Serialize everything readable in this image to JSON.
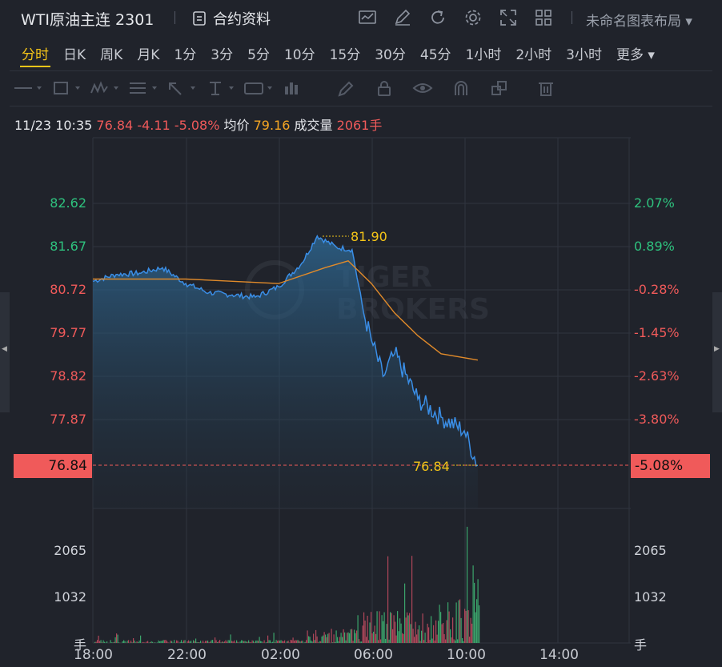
{
  "header": {
    "title": "WTI原油主连 2301",
    "info_label": "合约资料",
    "layout_label": "未命名图表布局"
  },
  "tabs": [
    {
      "label": "分时",
      "active": true
    },
    {
      "label": "日K"
    },
    {
      "label": "周K"
    },
    {
      "label": "月K"
    },
    {
      "label": "1分"
    },
    {
      "label": "3分"
    },
    {
      "label": "5分"
    },
    {
      "label": "10分"
    },
    {
      "label": "15分"
    },
    {
      "label": "30分"
    },
    {
      "label": "45分"
    },
    {
      "label": "1小时"
    },
    {
      "label": "2小时"
    },
    {
      "label": "3小时"
    },
    {
      "label": "更多"
    }
  ],
  "quote": {
    "datetime": "11/23 10:35",
    "price": "76.84",
    "change": "-4.11",
    "change_pct": "-5.08%",
    "avg_label": "均价",
    "avg_value": "79.16",
    "vol_label": "成交量",
    "vol_value": "2061手"
  },
  "watermark": [
    "TIGER",
    "BROKERS"
  ],
  "colors": {
    "up": "#2ec27e",
    "down": "#f05a5a",
    "price_line": "#3a8ee6",
    "avg_line": "#f5a623",
    "accent": "#f5c518"
  },
  "chart_data": {
    "type": "line",
    "price_axis": [
      "82.62",
      "81.67",
      "80.72",
      "79.77",
      "78.82",
      "77.87"
    ],
    "pct_axis": [
      "2.07%",
      "0.89%",
      "-0.28%",
      "-1.45%",
      "-2.63%",
      "-3.80%"
    ],
    "last_price": "76.84",
    "last_pct": "-5.08%",
    "high_label": "81.90",
    "last_label": "76.84",
    "volume_axis": [
      "2065",
      "1032"
    ],
    "volume_unit": "手",
    "time_labels": [
      "18:00",
      "22:00",
      "02:00",
      "06:00",
      "10:00",
      "14:00"
    ],
    "series": [
      {
        "x": [
          "18:00",
          "19:00",
          "20:00",
          "21:00",
          "22:00",
          "23:00",
          "00:00",
          "01:00",
          "02:00",
          "03:00",
          "03:40",
          "04:30",
          "05:10",
          "05:40",
          "06:00",
          "06:30",
          "07:00",
          "08:00",
          "09:00",
          "10:00",
          "10:35"
        ],
        "values": [
          80.9,
          81.05,
          81.08,
          81.2,
          80.85,
          80.65,
          80.6,
          80.55,
          80.78,
          81.3,
          81.9,
          81.65,
          81.6,
          80.2,
          79.6,
          78.8,
          79.3,
          78.3,
          77.9,
          77.6,
          76.84
        ]
      },
      {
        "x": [
          "18:00",
          "22:00",
          "02:00",
          "04:00",
          "05:00",
          "06:00",
          "07:00",
          "08:00",
          "09:00",
          "10:35"
        ],
        "values": [
          80.95,
          80.95,
          80.85,
          81.2,
          81.35,
          80.85,
          80.2,
          79.7,
          79.3,
          79.16
        ]
      }
    ]
  }
}
